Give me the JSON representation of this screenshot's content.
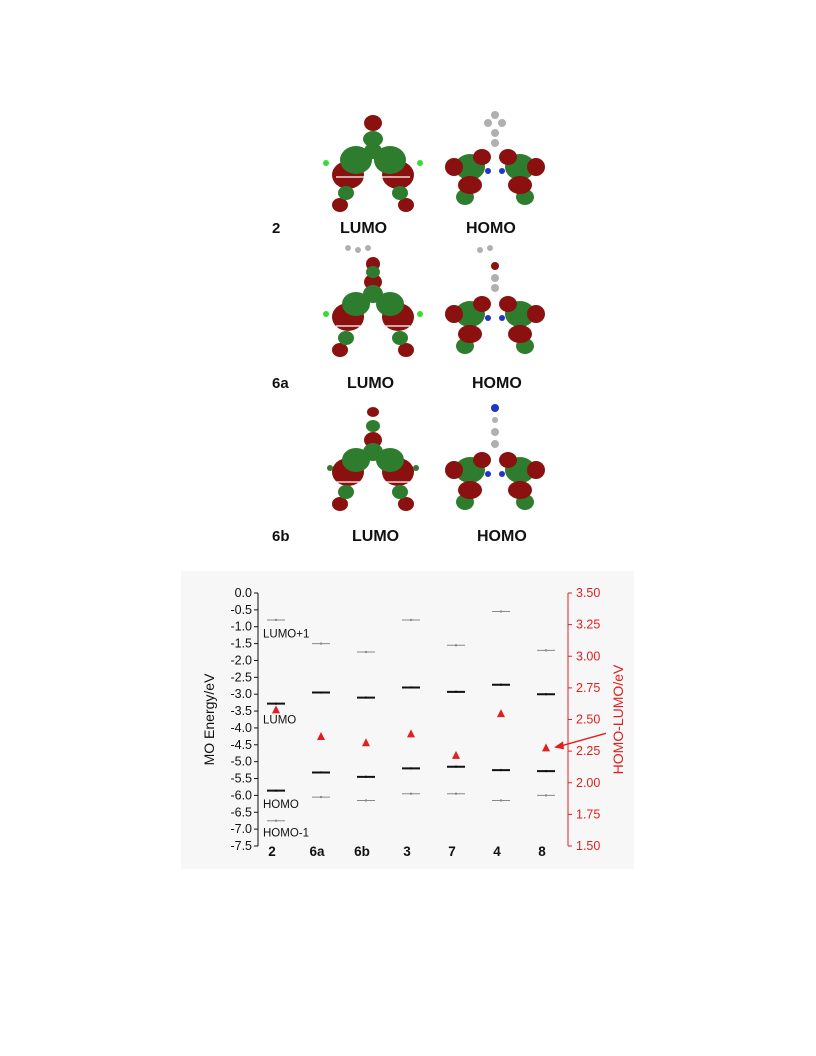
{
  "figure_top": {
    "rows": [
      {
        "compound": "2",
        "lumo_label": "LUMO",
        "homo_label": "HOMO"
      },
      {
        "compound": "6a",
        "lumo_label": "LUMO",
        "homo_label": "HOMO"
      },
      {
        "compound": "6b",
        "lumo_label": "LUMO",
        "homo_label": "HOMO"
      }
    ],
    "colors": {
      "lobe_green": "#2e7d2e",
      "lobe_red": "#8b1010",
      "atom_gray": "#b0b0b0",
      "nitrogen_blue": "#2233cc",
      "chlorine_green": "#33dd33"
    }
  },
  "chart_data": {
    "type": "scatter",
    "categories": [
      "2",
      "6a",
      "6b",
      "3",
      "7",
      "4",
      "8"
    ],
    "ylabel": "MO Energy/eV",
    "y2label": "HOMO-LUMO/eV",
    "ylim": [
      -7.5,
      0.0
    ],
    "y2lim": [
      1.5,
      3.5
    ],
    "y_ticks": [
      "0.0",
      "-0.5",
      "-1.0",
      "-1.5",
      "-2.0",
      "-2.5",
      "-3.0",
      "-3.5",
      "-4.0",
      "-4.5",
      "-5.0",
      "-5.5",
      "-6.0",
      "-6.5",
      "-7.0",
      "-7.5"
    ],
    "y2_ticks": [
      "3.50",
      "3.25",
      "3.00",
      "2.75",
      "2.50",
      "2.25",
      "2.00",
      "1.75",
      "1.50"
    ],
    "series": [
      {
        "key": "lumo1",
        "values": [
          -0.8,
          -1.5,
          -1.75,
          -0.8,
          -1.55,
          -0.55,
          -1.7
        ]
      },
      {
        "key": "lumo",
        "values": [
          -3.28,
          -2.95,
          -3.1,
          -2.8,
          -2.93,
          -2.72,
          -3.0
        ]
      },
      {
        "key": "homo",
        "values": [
          -5.86,
          -5.32,
          -5.45,
          -5.2,
          -5.15,
          -5.25,
          -5.28
        ]
      },
      {
        "key": "homo1",
        "values": [
          -6.75,
          -6.05,
          -6.15,
          -5.95,
          -5.95,
          -6.15,
          -6.0
        ]
      },
      {
        "key": "gap",
        "axis": "right",
        "values": [
          2.58,
          2.37,
          2.32,
          2.39,
          2.22,
          2.55,
          2.28
        ]
      }
    ],
    "annotations": {
      "lumo1": "LUMO+1",
      "lumo": "LUMO",
      "homo": "HOMO",
      "homo1": "HOMO-1"
    },
    "colors": {
      "left_axis": "#111111",
      "right_axis": "#e02020",
      "gap_marker": "#e02020",
      "bg": "#f7f7f7"
    }
  }
}
